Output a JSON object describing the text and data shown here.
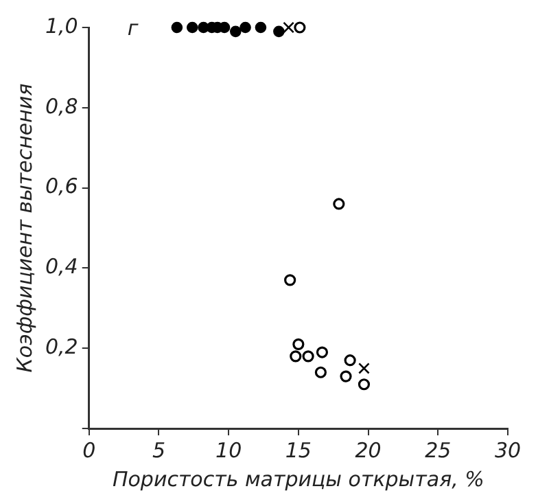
{
  "chart_data": {
    "type": "scatter",
    "xlabel": "Пористость матрицы открытая, %",
    "ylabel": "Коэффициент вытеснения",
    "annotations": [
      "г"
    ],
    "xlim": [
      0,
      30
    ],
    "xticks": [
      0,
      5,
      10,
      15,
      20,
      25,
      30
    ],
    "ylim": [
      0,
      1.0
    ],
    "yticks": [
      {
        "value": 0,
        "label": null
      },
      {
        "value": 0.2,
        "label": "0,2"
      },
      {
        "value": 0.4,
        "label": "0,4"
      },
      {
        "value": 0.6,
        "label": "0,6"
      },
      {
        "value": 0.8,
        "label": "0,8"
      },
      {
        "value": 1.0,
        "label": "1,0"
      }
    ],
    "grid": false,
    "legend": false,
    "series": [
      {
        "color": "#000000",
        "marker": "circle",
        "x": [
          6.3,
          7.4,
          8.2,
          8.8,
          9.2,
          9.7,
          10.5,
          11.2,
          12.3,
          13.6
        ],
        "values": [
          1.0,
          1.0,
          1.0,
          1.0,
          1.0,
          1.0,
          0.99,
          1.0,
          1.0,
          0.99
        ]
      },
      {
        "color": "#000000",
        "marker": "circle",
        "x": [
          15.1,
          17.9,
          14.4,
          15.0,
          14.8,
          15.7,
          16.7,
          16.6,
          18.7,
          18.4,
          19.7
        ],
        "values": [
          1.0,
          0.56,
          0.37,
          0.21,
          0.18,
          0.18,
          0.19,
          0.14,
          0.17,
          0.13,
          0.11
        ]
      },
      {
        "color": "#000000",
        "marker": "cross",
        "x": [
          14.3,
          19.7
        ],
        "values": [
          1.0,
          0.15
        ]
      }
    ]
  }
}
